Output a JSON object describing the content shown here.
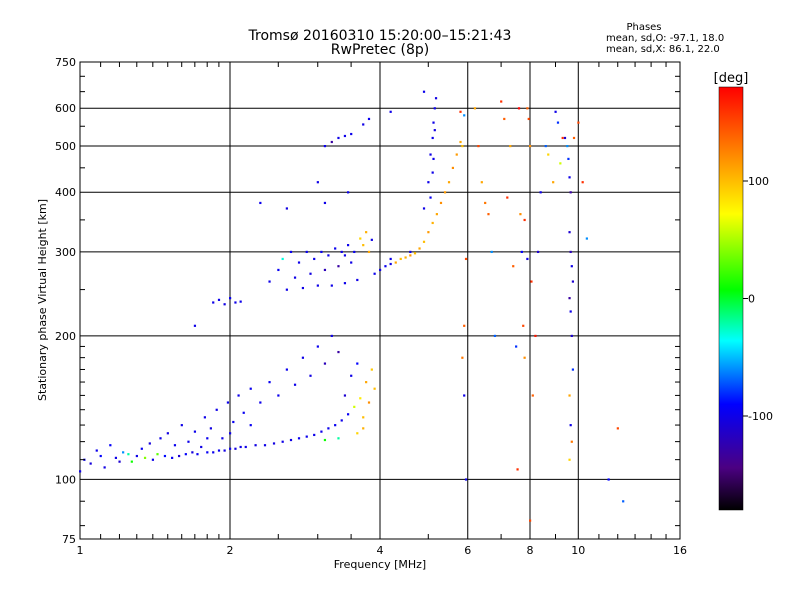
{
  "chart_data": {
    "type": "scatter",
    "title": "Tromsø 20160310 15:20:00–15:21:43",
    "subtitle": "RwPretec (8p)",
    "xlabel": "Frequency [MHz]",
    "ylabel": "Stationary phase Virtual Height [km]",
    "x_scale": "log",
    "y_scale": "log",
    "xlim": [
      1,
      16
    ],
    "ylim": [
      75,
      750
    ],
    "x_ticks": [
      1,
      2,
      4,
      6,
      8,
      10,
      16
    ],
    "y_ticks": [
      75,
      100,
      200,
      300,
      400,
      500,
      600,
      750
    ],
    "grid": true,
    "phases_box": {
      "heading": "Phases",
      "line_o": "mean, sd,O: -97.1, 18.0",
      "line_x": "mean, sd,X:  86.1, 22.0"
    },
    "colorbar": {
      "label": "[deg]",
      "range": [
        -180,
        180
      ],
      "ticks": [
        100,
        0,
        -100
      ],
      "colormap": "rainbow (black-purple-blue-cyan-green-yellow-orange-red)"
    },
    "series": [
      {
        "points": [
          [
            1.0,
            104,
            -100
          ],
          [
            1.02,
            110,
            -95
          ],
          [
            1.05,
            108,
            -105
          ],
          [
            1.08,
            115,
            -98
          ],
          [
            1.1,
            112,
            -90
          ],
          [
            1.12,
            106,
            -102
          ],
          [
            1.15,
            118,
            -92
          ],
          [
            1.18,
            111,
            -100
          ],
          [
            1.2,
            109,
            -110
          ],
          [
            1.22,
            114,
            -60
          ],
          [
            1.25,
            113,
            -20
          ],
          [
            1.27,
            109,
            10
          ],
          [
            1.3,
            112,
            -100
          ],
          [
            1.33,
            116,
            -95
          ],
          [
            1.35,
            111,
            40
          ],
          [
            1.38,
            119,
            -105
          ],
          [
            1.4,
            110,
            -99
          ],
          [
            1.43,
            113,
            30
          ],
          [
            1.45,
            122,
            -100
          ],
          [
            1.48,
            112,
            -88
          ],
          [
            1.5,
            125,
            -102
          ],
          [
            1.53,
            111,
            -95
          ],
          [
            1.55,
            118,
            -97
          ],
          [
            1.58,
            112,
            -110
          ],
          [
            1.6,
            130,
            -100
          ],
          [
            1.63,
            113,
            -92
          ],
          [
            1.65,
            120,
            -99
          ],
          [
            1.68,
            114,
            -105
          ],
          [
            1.7,
            126,
            -98
          ],
          [
            1.72,
            113,
            -96
          ],
          [
            1.75,
            117,
            -101
          ],
          [
            1.78,
            135,
            -100
          ],
          [
            1.8,
            114,
            -94
          ],
          [
            1.83,
            128,
            -103
          ],
          [
            1.85,
            114,
            -97
          ],
          [
            1.88,
            140,
            -100
          ],
          [
            1.9,
            115,
            -95
          ],
          [
            1.93,
            122,
            -99
          ],
          [
            1.95,
            115,
            -102
          ],
          [
            1.98,
            145,
            -98
          ],
          [
            2.0,
            116,
            -100
          ],
          [
            2.03,
            132,
            -96
          ],
          [
            2.05,
            116,
            -104
          ],
          [
            2.08,
            150,
            -99
          ],
          [
            2.1,
            117,
            -101
          ],
          [
            2.13,
            138,
            -95
          ],
          [
            2.15,
            117,
            -100
          ],
          [
            2.2,
            155,
            -97
          ],
          [
            2.25,
            118,
            -102
          ],
          [
            2.3,
            145,
            -99
          ],
          [
            2.35,
            118,
            -100
          ],
          [
            2.4,
            160,
            -96
          ],
          [
            2.45,
            119,
            -103
          ],
          [
            2.5,
            150,
            -98
          ],
          [
            2.55,
            120,
            -100
          ],
          [
            2.6,
            170,
            -97
          ],
          [
            2.65,
            121,
            -101
          ],
          [
            2.7,
            158,
            -99
          ],
          [
            2.75,
            122,
            -96
          ],
          [
            2.8,
            180,
            -100
          ],
          [
            2.85,
            123,
            -98
          ],
          [
            2.9,
            165,
            -102
          ],
          [
            2.95,
            124,
            -99
          ],
          [
            3.0,
            190,
            -97
          ],
          [
            3.05,
            126,
            -100
          ],
          [
            3.1,
            175,
            -120
          ],
          [
            3.15,
            128,
            -98
          ],
          [
            3.2,
            200,
            -101
          ],
          [
            3.25,
            130,
            -96
          ],
          [
            3.3,
            185,
            -130
          ],
          [
            3.35,
            133,
            -99
          ],
          [
            3.4,
            150,
            -110
          ],
          [
            3.45,
            137,
            -95
          ],
          [
            3.5,
            165,
            -100
          ],
          [
            3.55,
            142,
            60
          ],
          [
            3.6,
            175,
            -90
          ],
          [
            3.65,
            148,
            80
          ],
          [
            3.7,
            135,
            100
          ],
          [
            3.75,
            160,
            110
          ],
          [
            3.8,
            145,
            120
          ],
          [
            3.85,
            170,
            95
          ],
          [
            3.9,
            155,
            100
          ],
          [
            3.3,
            122,
            -20
          ],
          [
            3.1,
            121,
            10
          ],
          [
            2.2,
            130,
            -95
          ],
          [
            2.0,
            125,
            -100
          ],
          [
            1.8,
            122,
            -97
          ],
          [
            3.6,
            125,
            90
          ],
          [
            3.7,
            128,
            105
          ]
        ]
      },
      {
        "points": [
          [
            1.85,
            235,
            -100
          ],
          [
            1.9,
            238,
            -98
          ],
          [
            1.95,
            233,
            -102
          ],
          [
            2.0,
            240,
            -96
          ],
          [
            2.05,
            235,
            -100
          ],
          [
            2.1,
            236,
            -99
          ],
          [
            2.4,
            260,
            -100
          ],
          [
            2.5,
            275,
            -95
          ],
          [
            2.55,
            290,
            -30
          ],
          [
            2.6,
            250,
            -100
          ],
          [
            2.65,
            300,
            -97
          ],
          [
            2.7,
            265,
            -101
          ],
          [
            2.75,
            285,
            -99
          ],
          [
            2.8,
            252,
            -100
          ],
          [
            2.85,
            300,
            -96
          ],
          [
            2.9,
            270,
            -103
          ],
          [
            2.95,
            290,
            -98
          ],
          [
            3.0,
            255,
            -100
          ],
          [
            3.05,
            300,
            -95
          ],
          [
            3.1,
            275,
            -120
          ],
          [
            3.15,
            295,
            -99
          ],
          [
            3.2,
            255,
            -100
          ],
          [
            3.25,
            305,
            -97
          ],
          [
            3.3,
            280,
            -130
          ],
          [
            3.35,
            300,
            -100
          ],
          [
            3.4,
            258,
            -99
          ],
          [
            3.45,
            310,
            -98
          ],
          [
            3.5,
            285,
            -101
          ],
          [
            3.55,
            300,
            -96
          ],
          [
            3.6,
            262,
            -100
          ],
          [
            3.65,
            320,
            90
          ],
          [
            3.7,
            310,
            100
          ],
          [
            3.75,
            330,
            105
          ],
          [
            3.8,
            300,
            110
          ],
          [
            3.85,
            318,
            -100
          ],
          [
            3.9,
            270,
            -98
          ],
          [
            4.0,
            275,
            -100
          ],
          [
            4.1,
            280,
            -97
          ],
          [
            4.2,
            283,
            -101
          ],
          [
            4.3,
            285,
            110
          ],
          [
            4.4,
            290,
            100
          ],
          [
            4.5,
            292,
            105
          ],
          [
            4.6,
            295,
            115
          ],
          [
            4.7,
            298,
            100
          ],
          [
            4.8,
            305,
            110
          ],
          [
            4.9,
            315,
            100
          ],
          [
            5.0,
            330,
            115
          ],
          [
            5.1,
            345,
            105
          ],
          [
            5.2,
            360,
            110
          ],
          [
            5.3,
            380,
            120
          ],
          [
            5.4,
            400,
            115
          ],
          [
            5.5,
            420,
            110
          ],
          [
            5.6,
            450,
            120
          ],
          [
            5.7,
            480,
            115
          ],
          [
            5.8,
            510,
            110
          ],
          [
            5.85,
            500,
            100
          ],
          [
            4.2,
            290,
            -98
          ],
          [
            4.6,
            300,
            -100
          ],
          [
            4.9,
            370,
            -100
          ],
          [
            5.0,
            420,
            -99
          ],
          [
            5.05,
            480,
            -101
          ],
          [
            5.1,
            520,
            -97
          ],
          [
            5.12,
            560,
            -100
          ],
          [
            5.15,
            600,
            -98
          ],
          [
            5.18,
            630,
            -102
          ],
          [
            5.1,
            440,
            -100
          ],
          [
            5.05,
            390,
            -96
          ],
          [
            5.15,
            540,
            -104
          ],
          [
            5.12,
            470,
            -99
          ]
        ]
      },
      {
        "points": [
          [
            1.7,
            210,
            -100
          ],
          [
            2.3,
            380,
            -98
          ],
          [
            2.6,
            370,
            -102
          ],
          [
            3.0,
            420,
            -100
          ],
          [
            3.1,
            500,
            -97
          ],
          [
            3.2,
            510,
            -130
          ],
          [
            3.3,
            520,
            -100
          ],
          [
            3.4,
            525,
            -99
          ],
          [
            3.5,
            530,
            -98
          ],
          [
            3.7,
            555,
            -101
          ],
          [
            3.8,
            570,
            -96
          ],
          [
            4.2,
            590,
            -100
          ],
          [
            4.9,
            650,
            -98
          ],
          [
            3.1,
            380,
            -100
          ],
          [
            3.4,
            295,
            -99
          ],
          [
            3.45,
            400,
            -98
          ],
          [
            5.8,
            590,
            160
          ],
          [
            5.9,
            580,
            -60
          ],
          [
            5.95,
            290,
            150
          ],
          [
            5.9,
            210,
            140
          ],
          [
            5.85,
            180,
            130
          ],
          [
            5.9,
            150,
            -100
          ],
          [
            5.95,
            100,
            -100
          ],
          [
            6.2,
            600,
            110
          ],
          [
            6.3,
            500,
            150
          ],
          [
            6.4,
            420,
            110
          ],
          [
            6.5,
            380,
            130
          ],
          [
            6.6,
            360,
            140
          ],
          [
            6.7,
            300,
            -60
          ],
          [
            6.8,
            200,
            -70
          ],
          [
            7.0,
            620,
            160
          ],
          [
            7.1,
            570,
            140
          ],
          [
            7.2,
            390,
            160
          ],
          [
            7.3,
            500,
            110
          ],
          [
            7.4,
            280,
            140
          ],
          [
            7.5,
            190,
            -80
          ],
          [
            7.55,
            105,
            160
          ],
          [
            7.6,
            600,
            180
          ],
          [
            7.65,
            360,
            120
          ],
          [
            7.7,
            300,
            -90
          ],
          [
            7.75,
            210,
            150
          ],
          [
            7.8,
            180,
            120
          ],
          [
            7.9,
            600,
            140
          ],
          [
            7.95,
            570,
            150
          ],
          [
            7.8,
            350,
            160
          ],
          [
            7.9,
            290,
            -100
          ],
          [
            8.0,
            500,
            120
          ],
          [
            8.05,
            260,
            160
          ],
          [
            8.1,
            150,
            140
          ],
          [
            8.0,
            82,
            150
          ],
          [
            8.2,
            200,
            170
          ],
          [
            8.3,
            300,
            -110
          ],
          [
            8.4,
            400,
            -100
          ],
          [
            8.6,
            500,
            -70
          ],
          [
            8.7,
            480,
            90
          ],
          [
            8.9,
            420,
            110
          ],
          [
            9.0,
            590,
            -100
          ],
          [
            9.1,
            560,
            -80
          ],
          [
            9.2,
            460,
            60
          ],
          [
            9.3,
            520,
            160
          ],
          [
            9.4,
            520,
            -110
          ],
          [
            9.5,
            500,
            -60
          ],
          [
            9.55,
            470,
            -80
          ],
          [
            9.6,
            430,
            -100
          ],
          [
            9.65,
            400,
            -130
          ],
          [
            9.6,
            330,
            -110
          ],
          [
            9.65,
            300,
            -120
          ],
          [
            9.7,
            280,
            -100
          ],
          [
            9.75,
            260,
            -110
          ],
          [
            9.6,
            240,
            -130
          ],
          [
            9.65,
            225,
            -100
          ],
          [
            9.7,
            200,
            -110
          ],
          [
            9.75,
            170,
            -80
          ],
          [
            9.6,
            150,
            110
          ],
          [
            9.65,
            130,
            -100
          ],
          [
            9.7,
            120,
            130
          ],
          [
            9.6,
            110,
            90
          ],
          [
            9.8,
            520,
            140
          ],
          [
            10.0,
            560,
            150
          ],
          [
            10.2,
            420,
            160
          ],
          [
            10.4,
            320,
            -60
          ],
          [
            11.5,
            100,
            -90
          ],
          [
            12.0,
            128,
            150
          ],
          [
            12.3,
            90,
            -70
          ]
        ]
      }
    ]
  }
}
